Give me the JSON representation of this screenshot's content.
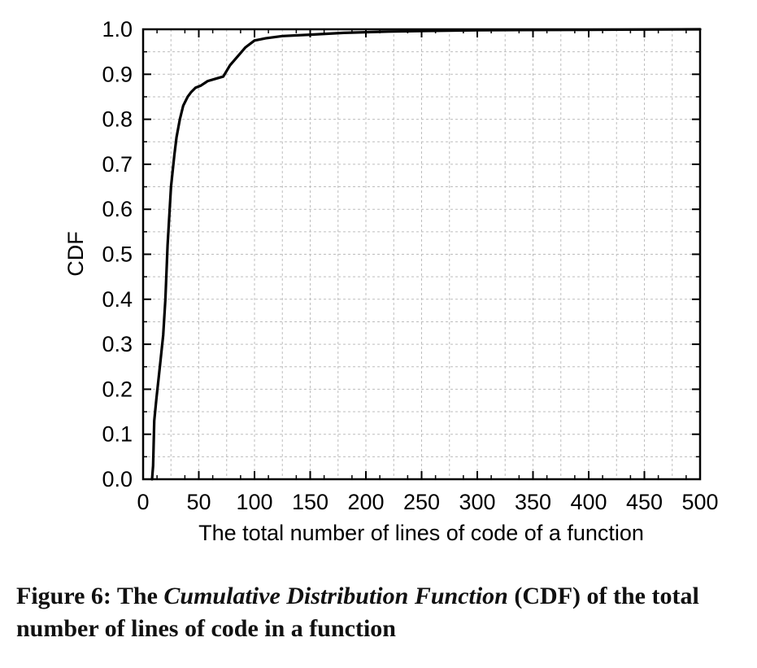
{
  "chart_data": {
    "type": "line",
    "xlabel": "The total number of lines of code of a function",
    "ylabel": "CDF",
    "xlim": [
      0,
      500
    ],
    "ylim": [
      0.0,
      1.0
    ],
    "xticks": [
      "0",
      "50",
      "100",
      "150",
      "200",
      "250",
      "300",
      "350",
      "400",
      "450",
      "500"
    ],
    "yticks": [
      "0.0",
      "0.1",
      "0.2",
      "0.3",
      "0.4",
      "0.5",
      "0.6",
      "0.7",
      "0.8",
      "0.9",
      "1.0"
    ],
    "grid": true,
    "series": [
      {
        "x": [
          8,
          9,
          10,
          12,
          15,
          18,
          20,
          22,
          25,
          28,
          30,
          33,
          36,
          40,
          43,
          47,
          52,
          58,
          65,
          72,
          78,
          85,
          92,
          100,
          110,
          125,
          150,
          180,
          220,
          300,
          400,
          500
        ],
        "y": [
          0.0,
          0.03,
          0.13,
          0.18,
          0.25,
          0.32,
          0.4,
          0.52,
          0.65,
          0.72,
          0.76,
          0.8,
          0.83,
          0.85,
          0.86,
          0.87,
          0.875,
          0.885,
          0.89,
          0.895,
          0.92,
          0.94,
          0.96,
          0.975,
          0.98,
          0.985,
          0.988,
          0.992,
          0.995,
          0.998,
          0.999,
          1.0
        ],
        "color": "#000000"
      }
    ]
  },
  "caption": {
    "prefix": "Figure 6: The ",
    "emphasis": "Cumulative Distribution Function",
    "suffix": " (CDF) of the total number of lines of code in a function"
  }
}
